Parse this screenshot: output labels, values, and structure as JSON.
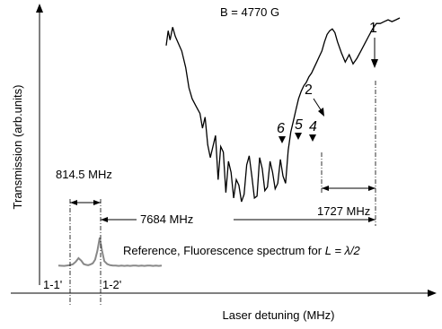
{
  "chart_data": {
    "type": "line",
    "title": "",
    "field_label": "B = 4770 G",
    "xlabel": "Laser detuning (MHz)",
    "ylabel": "Transmission (arb.units)",
    "grid": false,
    "series": [
      {
        "name": "",
        "color": "#000000",
        "x": [
          0,
          30,
          60,
          100,
          140,
          190,
          240,
          300,
          350,
          400,
          460,
          520,
          560,
          600,
          640,
          680,
          720,
          760,
          800,
          840,
          880,
          920,
          960,
          1000,
          1040,
          1080,
          1120,
          1160,
          1200,
          1240,
          1280,
          1320,
          1360,
          1400,
          1440,
          1480,
          1520,
          1560,
          1600,
          1640,
          1680,
          1720,
          1760,
          1800,
          1840,
          1880,
          1920,
          1960,
          2000,
          2040,
          2080,
          2120,
          2160,
          2200,
          2240,
          2280,
          2320,
          2360,
          2400,
          2440,
          2480,
          2520,
          2560,
          2600,
          2640,
          2700,
          2760,
          2820,
          2880,
          2940,
          3000,
          3060,
          3120,
          3180,
          3240,
          3300,
          3360,
          3420,
          3480,
          3540,
          3600
        ],
        "y": [
          0.85,
          0.93,
          0.88,
          0.95,
          0.9,
          0.86,
          0.82,
          0.73,
          0.62,
          0.56,
          0.52,
          0.48,
          0.4,
          0.46,
          0.31,
          0.24,
          0.3,
          0.36,
          0.12,
          0.3,
          0.27,
          0.05,
          0.22,
          0.16,
          0.02,
          0.12,
          0.09,
          0.0,
          0.04,
          0.2,
          0.25,
          0.14,
          0.02,
          0.03,
          0.24,
          0.18,
          0.06,
          0.08,
          0.22,
          0.16,
          0.07,
          0.1,
          0.23,
          0.14,
          0.1,
          0.28,
          0.38,
          0.44,
          0.5,
          0.56,
          0.6,
          0.63,
          0.65,
          0.68,
          0.7,
          0.73,
          0.76,
          0.79,
          0.82,
          0.87,
          0.91,
          0.93,
          0.94,
          0.92,
          0.87,
          0.81,
          0.76,
          0.8,
          0.75,
          0.78,
          0.82,
          0.86,
          0.9,
          0.94,
          0.97,
          0.97,
          0.98,
          0.99,
          0.98,
          0.99,
          1.0
        ]
      },
      {
        "name": "",
        "color": "#888888",
        "x": [
          -1200,
          -1100,
          -1000,
          -950,
          -900,
          -850,
          -800,
          -760,
          -720,
          -680,
          -640,
          -600,
          -560,
          -520,
          -480,
          -440,
          -400,
          -350,
          -300,
          -250,
          -200,
          -150,
          -100,
          -50,
          0,
          50,
          100,
          150,
          200,
          250,
          300,
          350,
          400,
          450,
          500,
          550,
          600
        ],
        "y": [
          0.02,
          0.01,
          0.03,
          0.05,
          0.12,
          0.22,
          0.15,
          0.06,
          0.04,
          0.03,
          0.05,
          0.08,
          0.18,
          0.42,
          0.78,
          0.42,
          0.14,
          0.06,
          0.03,
          0.02,
          0.02,
          0.01,
          0.02,
          0.01,
          0.02,
          0.01,
          0.02,
          0.02,
          0.01,
          0.02,
          0.01,
          0.02,
          0.02,
          0.01,
          0.02,
          0.01,
          0.02
        ]
      }
    ],
    "peak_labels": [
      "1",
      "2",
      "6",
      "5",
      "4"
    ],
    "annotations": {
      "reference_label": "Reference, Fluorescence spectrum for",
      "reference_math": "L = λ/2",
      "spacing_814": "814.5 MHz",
      "spacing_7684": "7684 MHz",
      "spacing_1727": "1727 MHz",
      "ref_peak_1": "1-1'",
      "ref_peak_2": "1-2'"
    }
  }
}
